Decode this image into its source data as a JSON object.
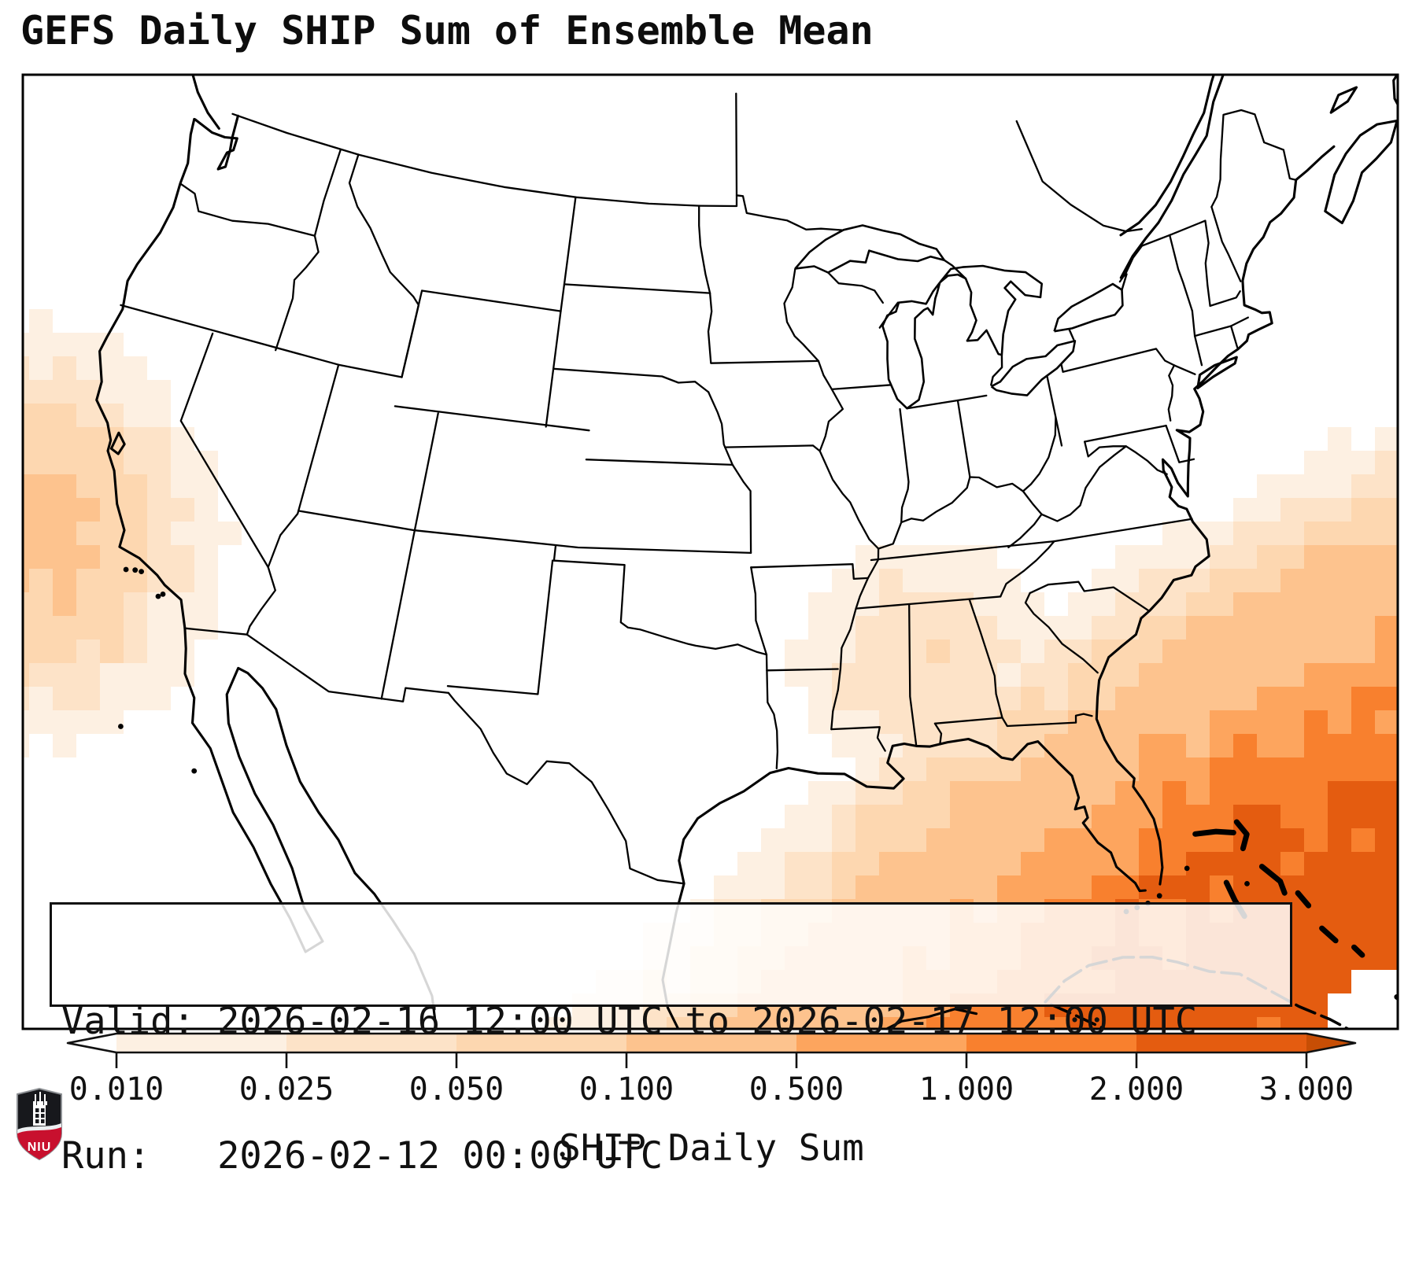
{
  "title": "GEFS Daily SHIP Sum of Ensemble Mean",
  "info_box": {
    "valid_line": "Valid: 2026-02-16 12:00 UTC to 2026-02-17 12:00 UTC",
    "run_line": "Run:   2026-02-12 00:00 UTC"
  },
  "colorbar": {
    "label": "SHIP Daily Sum",
    "ticks": [
      "0.010",
      "0.025",
      "0.050",
      "0.100",
      "0.500",
      "1.000",
      "2.000",
      "3.000"
    ],
    "segment_colors": [
      "#fdf0e2",
      "#fde3c8",
      "#fdd7b0",
      "#fdc38e",
      "#fda55e",
      "#f8802e",
      "#e45c10"
    ],
    "under_color": "#ffffff",
    "over_color": "#c74e05",
    "outline_color": "#111111"
  },
  "map": {
    "background": "#ffffff",
    "line_color": "#000000",
    "shading_levels": [
      0.01,
      0.025,
      0.05,
      0.1,
      0.5,
      1.0,
      2.0,
      3.0
    ]
  },
  "logo": {
    "text": "NIU",
    "black": "#17181c",
    "red": "#c8102e"
  },
  "chart_data": {
    "type": "heatmap",
    "title": "GEFS Daily SHIP Sum of Ensemble Mean",
    "colorbar_label": "SHIP Daily Sum",
    "levels": [
      0.01,
      0.025,
      0.05,
      0.1,
      0.5,
      1.0,
      2.0,
      3.0
    ],
    "valid": "2026-02-16 12:00 UTC to 2026-02-17 12:00 UTC",
    "run": "2026-02-12 00:00 UTC",
    "regions": [
      {
        "name": "Pacific offshore of California",
        "approx_peak": 0.15
      },
      {
        "name": "Western Atlantic / Bahamas / east of Florida",
        "approx_peak": 2.9
      },
      {
        "name": "Florida peninsula east half",
        "approx_peak": 0.8
      }
    ]
  }
}
